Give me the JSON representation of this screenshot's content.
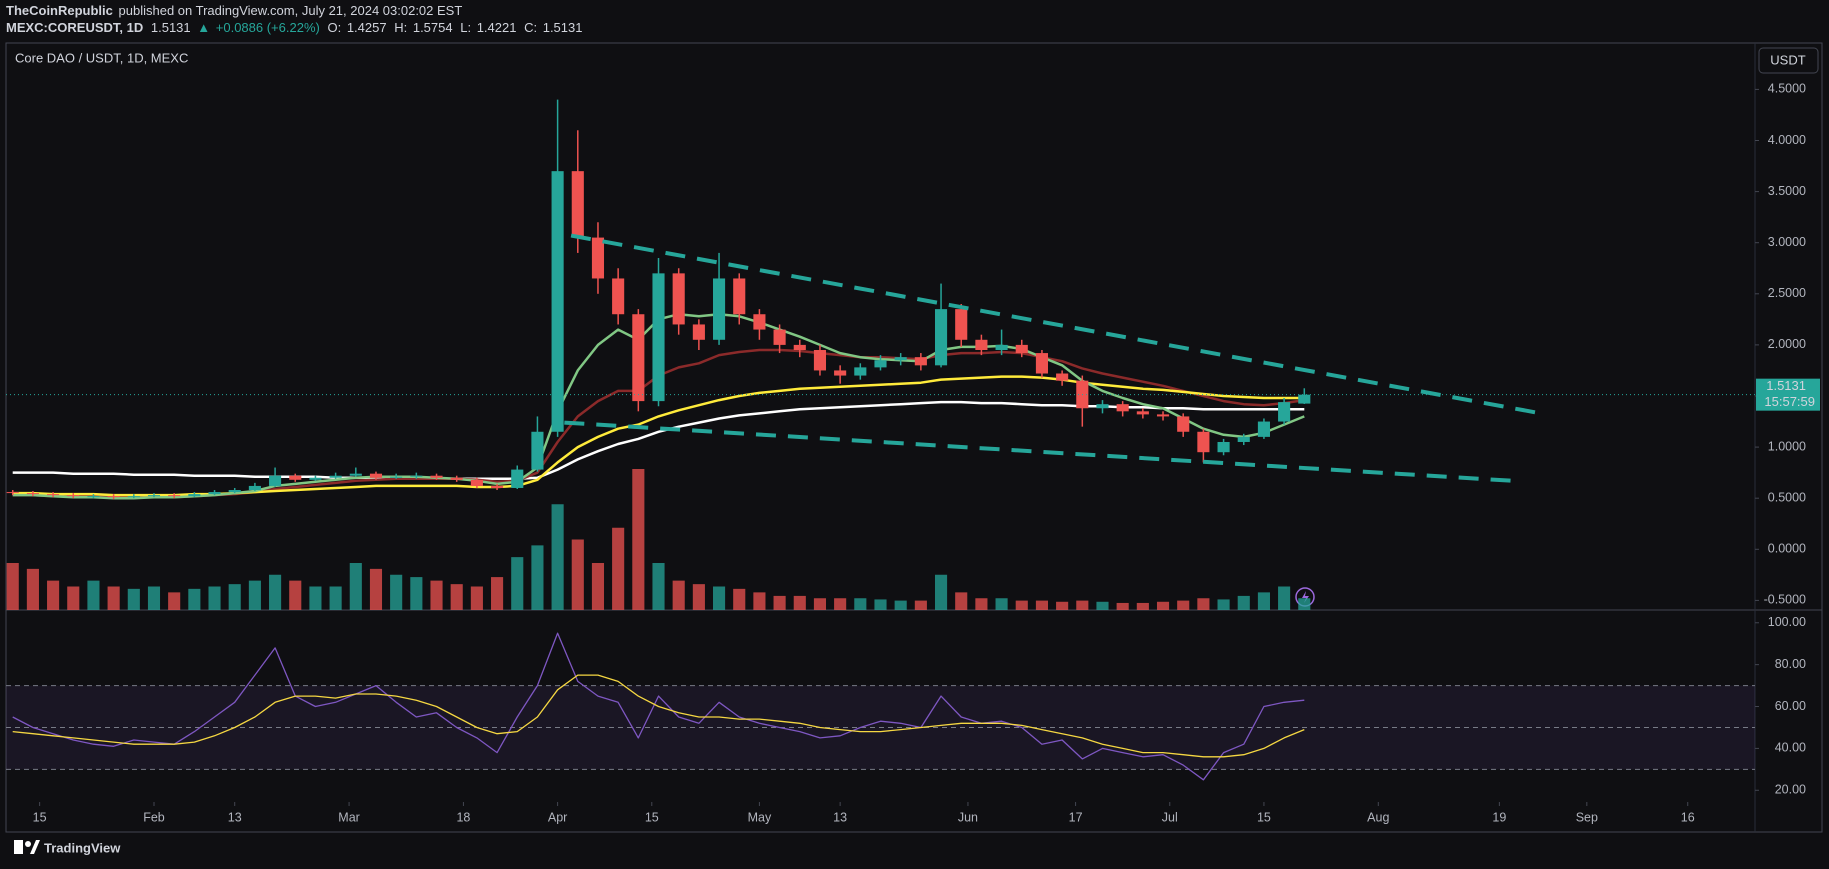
{
  "header": {
    "publisher": "TheCoinRepublic",
    "published": "published on TradingView.com, July 21, 2024 03:02:02 EST",
    "symbol": "MEXC:COREUSDT, 1D",
    "last": "1.5131",
    "change_arrow": "▲",
    "change": "+0.0886 (+6.22%)",
    "ohlc": [
      {
        "label": "O:",
        "value": "1.4257"
      },
      {
        "label": "H:",
        "value": "1.5754"
      },
      {
        "label": "L:",
        "value": "1.4221"
      },
      {
        "label": "C:",
        "value": "1.5131"
      }
    ]
  },
  "footer": "TradingView",
  "chart_data": {
    "type": "candlestick",
    "title": "Core DAO / USDT, 1D, MEXC",
    "currency": "USDT",
    "up_color": "#26a69a",
    "down_color": "#ef5350",
    "x": [
      "2024-01-11",
      "2024-01-14",
      "2024-01-17",
      "2024-01-20",
      "2024-01-23",
      "2024-01-26",
      "2024-01-29",
      "2024-02-01",
      "2024-02-04",
      "2024-02-07",
      "2024-02-10",
      "2024-02-13",
      "2024-02-16",
      "2024-02-19",
      "2024-02-22",
      "2024-02-25",
      "2024-02-28",
      "2024-03-02",
      "2024-03-05",
      "2024-03-08",
      "2024-03-11",
      "2024-03-14",
      "2024-03-17",
      "2024-03-20",
      "2024-03-23",
      "2024-03-26",
      "2024-03-29",
      "2024-04-01",
      "2024-04-04",
      "2024-04-07",
      "2024-04-10",
      "2024-04-13",
      "2024-04-16",
      "2024-04-19",
      "2024-04-22",
      "2024-04-25",
      "2024-04-28",
      "2024-05-01",
      "2024-05-04",
      "2024-05-07",
      "2024-05-10",
      "2024-05-13",
      "2024-05-16",
      "2024-05-19",
      "2024-05-22",
      "2024-05-25",
      "2024-05-28",
      "2024-05-31",
      "2024-06-03",
      "2024-06-06",
      "2024-06-09",
      "2024-06-12",
      "2024-06-15",
      "2024-06-18",
      "2024-06-21",
      "2024-06-24",
      "2024-06-27",
      "2024-06-30",
      "2024-07-03",
      "2024-07-06",
      "2024-07-09",
      "2024-07-12",
      "2024-07-15",
      "2024-07-18",
      "2024-07-21"
    ],
    "open": [
      0.56,
      0.55,
      0.54,
      0.53,
      0.52,
      0.52,
      0.51,
      0.52,
      0.53,
      0.52,
      0.54,
      0.56,
      0.58,
      0.62,
      0.72,
      0.68,
      0.7,
      0.72,
      0.74,
      0.7,
      0.71,
      0.72,
      0.7,
      0.68,
      0.62,
      0.6,
      0.78,
      1.15,
      3.7,
      3.05,
      2.65,
      2.3,
      1.45,
      2.7,
      2.2,
      2.05,
      2.65,
      2.3,
      2.15,
      2.0,
      1.95,
      1.75,
      1.7,
      1.78,
      1.85,
      1.88,
      1.8,
      2.35,
      2.05,
      1.95,
      2.0,
      1.92,
      1.72,
      1.65,
      1.38,
      1.42,
      1.35,
      1.32,
      1.3,
      1.15,
      0.95,
      1.05,
      1.1,
      1.25,
      1.4257
    ],
    "high": [
      0.58,
      0.57,
      0.56,
      0.55,
      0.54,
      0.54,
      0.54,
      0.55,
      0.55,
      0.56,
      0.58,
      0.6,
      0.65,
      0.8,
      0.74,
      0.72,
      0.75,
      0.8,
      0.76,
      0.74,
      0.75,
      0.74,
      0.72,
      0.7,
      0.64,
      0.82,
      1.3,
      4.4,
      4.1,
      3.2,
      2.75,
      2.35,
      2.85,
      2.75,
      2.25,
      2.9,
      2.7,
      2.35,
      2.2,
      2.05,
      2.0,
      1.8,
      1.82,
      1.9,
      1.92,
      1.92,
      2.6,
      2.4,
      2.1,
      2.15,
      2.05,
      1.95,
      1.75,
      1.7,
      1.46,
      1.45,
      1.38,
      1.35,
      1.33,
      1.18,
      1.08,
      1.13,
      1.28,
      1.48,
      1.5754
    ],
    "low": [
      0.53,
      0.52,
      0.51,
      0.5,
      0.5,
      0.49,
      0.5,
      0.51,
      0.5,
      0.51,
      0.53,
      0.55,
      0.57,
      0.61,
      0.66,
      0.67,
      0.69,
      0.71,
      0.68,
      0.69,
      0.69,
      0.68,
      0.66,
      0.6,
      0.58,
      0.59,
      0.76,
      1.1,
      2.9,
      2.5,
      2.2,
      1.35,
      1.4,
      2.1,
      1.95,
      2.0,
      2.2,
      2.05,
      1.92,
      1.88,
      1.7,
      1.62,
      1.66,
      1.75,
      1.8,
      1.75,
      1.78,
      1.98,
      1.9,
      1.9,
      1.88,
      1.68,
      1.6,
      1.2,
      1.33,
      1.3,
      1.28,
      1.26,
      1.1,
      0.85,
      0.92,
      1.02,
      1.08,
      1.22,
      1.4221
    ],
    "close": [
      0.55,
      0.54,
      0.53,
      0.52,
      0.52,
      0.51,
      0.52,
      0.53,
      0.52,
      0.54,
      0.56,
      0.58,
      0.62,
      0.72,
      0.68,
      0.7,
      0.72,
      0.74,
      0.7,
      0.71,
      0.72,
      0.7,
      0.68,
      0.62,
      0.6,
      0.78,
      1.15,
      3.7,
      3.05,
      2.65,
      2.3,
      1.45,
      2.7,
      2.2,
      2.05,
      2.65,
      2.3,
      2.15,
      2.0,
      1.95,
      1.75,
      1.7,
      1.78,
      1.85,
      1.88,
      1.8,
      2.35,
      2.05,
      1.95,
      2.0,
      1.92,
      1.72,
      1.65,
      1.38,
      1.42,
      1.35,
      1.32,
      1.3,
      1.15,
      0.95,
      1.05,
      1.1,
      1.25,
      1.44,
      1.5131
    ],
    "volume": [
      40,
      35,
      25,
      20,
      25,
      20,
      18,
      20,
      15,
      18,
      20,
      22,
      25,
      30,
      25,
      20,
      20,
      40,
      35,
      30,
      28,
      25,
      22,
      20,
      28,
      45,
      55,
      90,
      60,
      40,
      70,
      120,
      40,
      25,
      22,
      20,
      18,
      15,
      12,
      12,
      10,
      10,
      10,
      9,
      8,
      8,
      30,
      15,
      10,
      10,
      8,
      8,
      7,
      8,
      7,
      6,
      6,
      7,
      8,
      10,
      9,
      12,
      15,
      20,
      10
    ],
    "moving_averages": [
      {
        "color": "#ffffff",
        "values": [
          0.75,
          0.75,
          0.75,
          0.74,
          0.74,
          0.74,
          0.73,
          0.73,
          0.73,
          0.72,
          0.72,
          0.72,
          0.71,
          0.71,
          0.71,
          0.71,
          0.7,
          0.7,
          0.7,
          0.7,
          0.7,
          0.69,
          0.69,
          0.69,
          0.69,
          0.69,
          0.7,
          0.78,
          0.88,
          0.96,
          1.03,
          1.08,
          1.15,
          1.2,
          1.24,
          1.28,
          1.31,
          1.33,
          1.35,
          1.37,
          1.38,
          1.39,
          1.4,
          1.41,
          1.42,
          1.43,
          1.44,
          1.44,
          1.43,
          1.43,
          1.42,
          1.41,
          1.41,
          1.4,
          1.4,
          1.39,
          1.39,
          1.38,
          1.38,
          1.37,
          1.37,
          1.37,
          1.37,
          1.37,
          1.37
        ]
      },
      {
        "color": "#8b2a2a",
        "values": [
          0.53,
          0.53,
          0.52,
          0.52,
          0.52,
          0.51,
          0.51,
          0.51,
          0.51,
          0.52,
          0.53,
          0.54,
          0.56,
          0.59,
          0.61,
          0.63,
          0.65,
          0.67,
          0.68,
          0.69,
          0.69,
          0.69,
          0.69,
          0.68,
          0.66,
          0.67,
          0.75,
          1.05,
          1.3,
          1.45,
          1.55,
          1.55,
          1.7,
          1.78,
          1.82,
          1.9,
          1.93,
          1.95,
          1.95,
          1.94,
          1.92,
          1.9,
          1.88,
          1.88,
          1.87,
          1.86,
          1.9,
          1.92,
          1.92,
          1.93,
          1.92,
          1.88,
          1.84,
          1.77,
          1.72,
          1.68,
          1.64,
          1.6,
          1.55,
          1.5,
          1.45,
          1.42,
          1.41,
          1.43,
          1.46
        ]
      },
      {
        "color": "#ffeb3b",
        "values": [
          0.55,
          0.55,
          0.54,
          0.54,
          0.54,
          0.53,
          0.53,
          0.53,
          0.53,
          0.54,
          0.54,
          0.55,
          0.56,
          0.57,
          0.58,
          0.59,
          0.6,
          0.61,
          0.62,
          0.62,
          0.62,
          0.62,
          0.62,
          0.61,
          0.61,
          0.62,
          0.68,
          0.85,
          1.0,
          1.1,
          1.18,
          1.22,
          1.3,
          1.36,
          1.41,
          1.46,
          1.5,
          1.53,
          1.55,
          1.57,
          1.58,
          1.59,
          1.6,
          1.61,
          1.62,
          1.63,
          1.66,
          1.67,
          1.68,
          1.69,
          1.69,
          1.68,
          1.66,
          1.63,
          1.61,
          1.59,
          1.57,
          1.56,
          1.54,
          1.52,
          1.5,
          1.49,
          1.48,
          1.48,
          1.48
        ]
      },
      {
        "color": "#81c784",
        "values": [
          0.53,
          0.53,
          0.52,
          0.51,
          0.51,
          0.5,
          0.5,
          0.51,
          0.51,
          0.52,
          0.53,
          0.55,
          0.57,
          0.62,
          0.64,
          0.66,
          0.68,
          0.7,
          0.71,
          0.71,
          0.71,
          0.7,
          0.69,
          0.67,
          0.64,
          0.66,
          0.8,
          1.35,
          1.75,
          2.0,
          2.15,
          2.05,
          2.25,
          2.3,
          2.28,
          2.3,
          2.28,
          2.22,
          2.15,
          2.08,
          2.0,
          1.92,
          1.88,
          1.86,
          1.85,
          1.84,
          1.95,
          1.98,
          1.98,
          1.99,
          1.96,
          1.88,
          1.8,
          1.65,
          1.55,
          1.48,
          1.42,
          1.38,
          1.28,
          1.18,
          1.12,
          1.1,
          1.14,
          1.22,
          1.3
        ]
      }
    ],
    "trendlines": [
      {
        "color": "#26a69a",
        "x": [
          "2024-04-03",
          "2024-08-26"
        ],
        "values": [
          3.07,
          1.32
        ]
      },
      {
        "color": "#26a69a",
        "x": [
          "2024-04-02",
          "2024-08-21"
        ],
        "values": [
          1.24,
          0.67
        ]
      }
    ],
    "last_price_label": "1.5131",
    "countdown": "15:57:59",
    "xlim": [
      "2024-01-10",
      "2024-09-26"
    ],
    "xticks": [
      {
        "value": "2024-01-15",
        "label": "15"
      },
      {
        "value": "2024-02-01",
        "label": "Feb"
      },
      {
        "value": "2024-02-13",
        "label": "13"
      },
      {
        "value": "2024-03-01",
        "label": "Mar"
      },
      {
        "value": "2024-03-18",
        "label": "18"
      },
      {
        "value": "2024-04-01",
        "label": "Apr"
      },
      {
        "value": "2024-04-15",
        "label": "15"
      },
      {
        "value": "2024-05-01",
        "label": "May"
      },
      {
        "value": "2024-05-13",
        "label": "13"
      },
      {
        "value": "2024-06-01",
        "label": "Jun"
      },
      {
        "value": "2024-06-17",
        "label": "17"
      },
      {
        "value": "2024-07-01",
        "label": "Jul"
      },
      {
        "value": "2024-07-15",
        "label": "15"
      },
      {
        "value": "2024-08-01",
        "label": "Aug"
      },
      {
        "value": "2024-08-19",
        "label": "19"
      },
      {
        "value": "2024-09-01",
        "label": "Sep"
      },
      {
        "value": "2024-09-16",
        "label": "16"
      }
    ],
    "ylim": [
      -0.594,
      4.954
    ],
    "yticks": [
      {
        "value": -0.5,
        "label": "-0.5000"
      },
      {
        "value": 0,
        "label": "0.0000"
      },
      {
        "value": 0.5,
        "label": "0.5000"
      },
      {
        "value": 1,
        "label": "1.0000"
      },
      {
        "value": 1.5,
        "label": "1.5000"
      },
      {
        "value": 2,
        "label": "2.0000"
      },
      {
        "value": 2.5,
        "label": "2.5000"
      },
      {
        "value": 3,
        "label": "3.0000"
      },
      {
        "value": 3.5,
        "label": "3.5000"
      },
      {
        "value": 4,
        "label": "4.0000"
      },
      {
        "value": 4.5,
        "label": "4.5000"
      }
    ],
    "rsi": {
      "color": "#7e57c2",
      "ma_color": "#f5d742",
      "levels": [
        30,
        50,
        70
      ],
      "ylim": [
        14.4,
        106.1
      ],
      "yticks": [
        {
          "value": 20,
          "label": "20.00"
        },
        {
          "value": 40,
          "label": "40.00"
        },
        {
          "value": 60,
          "label": "60.00"
        },
        {
          "value": 80,
          "label": "80.00"
        },
        {
          "value": 100,
          "label": "100.00"
        }
      ],
      "values": [
        55,
        50,
        47,
        44,
        42,
        41,
        44,
        43,
        42,
        48,
        55,
        62,
        75,
        88,
        65,
        60,
        62,
        66,
        70,
        62,
        55,
        57,
        50,
        45,
        38,
        55,
        70,
        95,
        72,
        65,
        62,
        45,
        65,
        55,
        52,
        62,
        55,
        52,
        50,
        48,
        45,
        46,
        50,
        53,
        52,
        50,
        65,
        55,
        52,
        53,
        50,
        42,
        44,
        35,
        40,
        38,
        36,
        37,
        32,
        25,
        38,
        42,
        60,
        62,
        63
      ],
      "ma_values": [
        48,
        47,
        46,
        45,
        44,
        43,
        42,
        42,
        42,
        43,
        46,
        50,
        55,
        62,
        65,
        65,
        64,
        66,
        66,
        65,
        63,
        60,
        55,
        50,
        47,
        48,
        55,
        68,
        75,
        75,
        72,
        65,
        60,
        57,
        55,
        55,
        54,
        54,
        53,
        52,
        50,
        49,
        48,
        48,
        49,
        50,
        51,
        52,
        52,
        52,
        51,
        49,
        47,
        45,
        42,
        40,
        38,
        38,
        37,
        36,
        36,
        37,
        40,
        45,
        49
      ]
    }
  }
}
